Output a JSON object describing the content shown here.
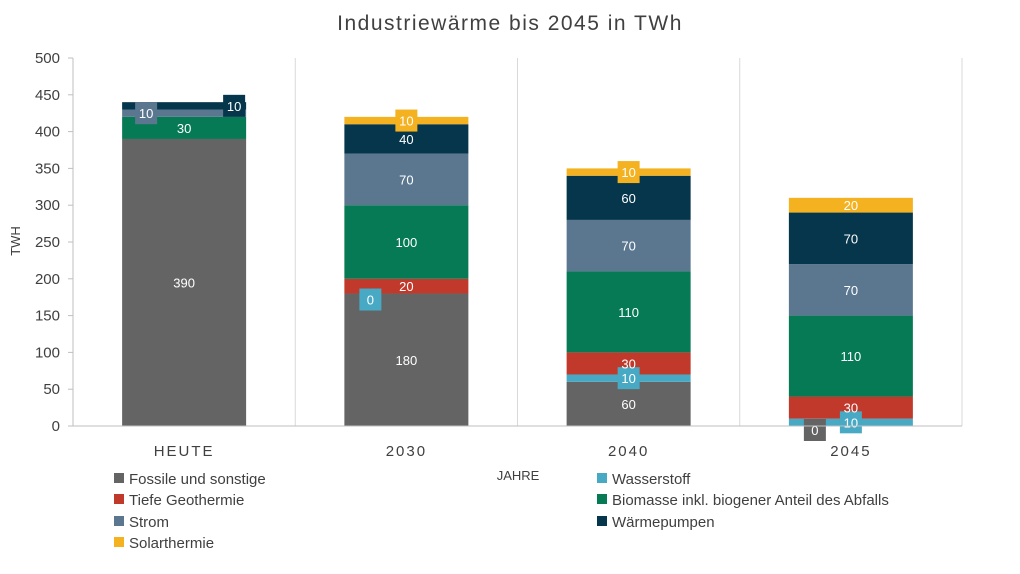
{
  "chart_data": {
    "type": "bar",
    "stacked": true,
    "title": "Industriewärme bis 2045 in TWh",
    "xlabel": "JAHRE",
    "ylabel": "TWH",
    "ylim": [
      0,
      500
    ],
    "yticks": [
      0,
      50,
      100,
      150,
      200,
      250,
      300,
      350,
      400,
      450,
      500
    ],
    "categories": [
      "HEUTE",
      "2030",
      "2040",
      "2045"
    ],
    "grid": "vertical separators",
    "legend_position": "bottom",
    "series": [
      {
        "name": "Fossile und sonstige",
        "color": "#646464",
        "values": [
          390,
          180,
          60,
          0
        ]
      },
      {
        "name": "Wasserstoff",
        "color": "#47A9C4",
        "values": [
          0,
          0,
          10,
          10
        ]
      },
      {
        "name": "Tiefe Geothermie",
        "color": "#C0392B",
        "values": [
          0,
          20,
          30,
          30
        ]
      },
      {
        "name": "Biomasse inkl. biogener Anteil des Abfalls",
        "color": "#067A55",
        "values": [
          30,
          100,
          110,
          110
        ]
      },
      {
        "name": "Strom",
        "color": "#5B7790",
        "values": [
          10,
          70,
          70,
          70
        ]
      },
      {
        "name": "Wärmepumpen",
        "color": "#06364B",
        "values": [
          10,
          40,
          60,
          70
        ]
      },
      {
        "name": "Solarthermie",
        "color": "#F4B120",
        "values": [
          0,
          10,
          10,
          20
        ]
      }
    ],
    "data_labels": [
      [
        "390",
        "",
        "",
        "30",
        "10",
        "10",
        ""
      ],
      [
        "180",
        "0",
        "20",
        "100",
        "70",
        "40",
        "10"
      ],
      [
        "60",
        "10",
        "30",
        "110",
        "70",
        "60",
        "10"
      ],
      [
        "0",
        "10",
        "30",
        "110",
        "70",
        "70",
        "20"
      ]
    ]
  }
}
